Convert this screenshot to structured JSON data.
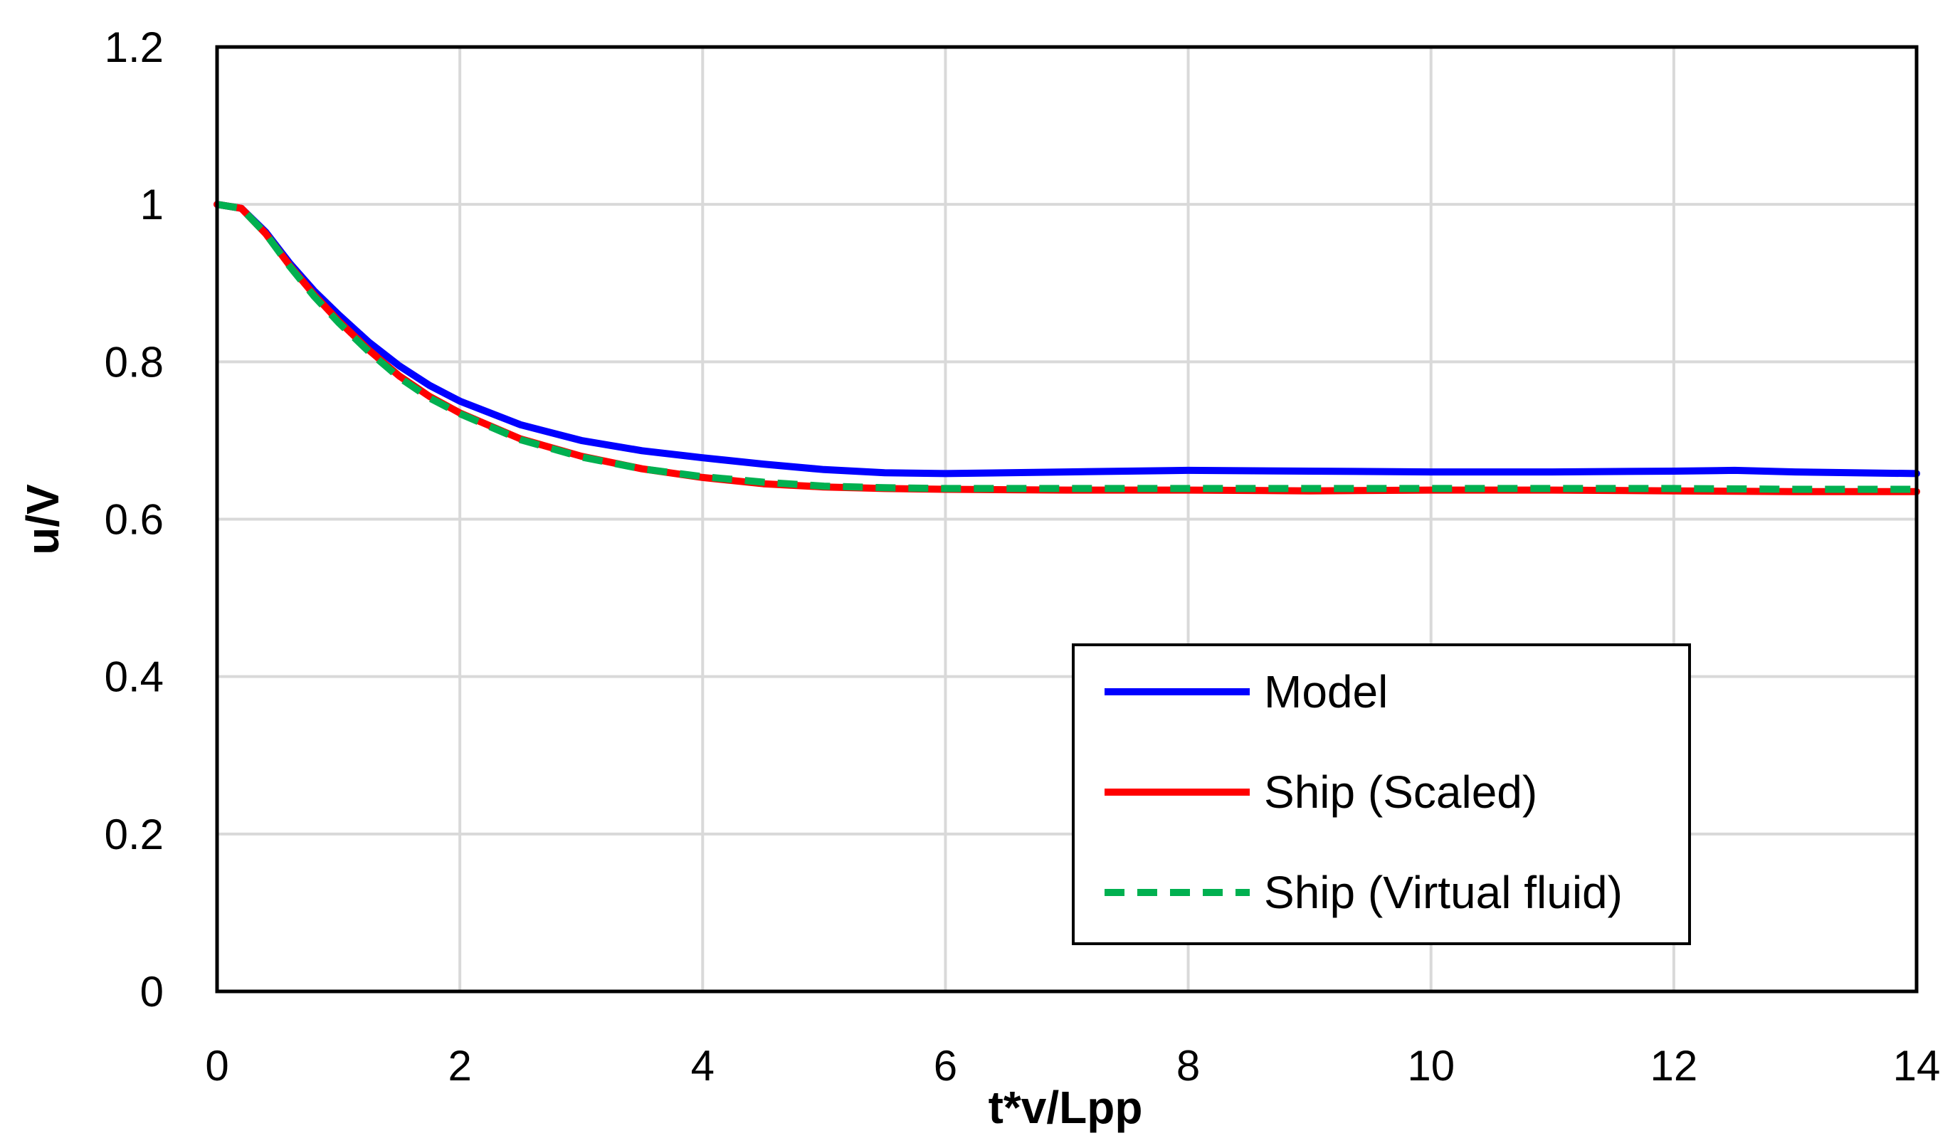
{
  "chart_data": {
    "type": "line",
    "title": "",
    "xlabel": "t*v/Lpp",
    "ylabel": "u/V",
    "xlim": [
      0,
      14
    ],
    "ylim": [
      0,
      1.2
    ],
    "xticks": [
      0,
      2,
      4,
      6,
      8,
      10,
      12,
      14
    ],
    "yticks": [
      0,
      0.2,
      0.4,
      0.6,
      0.8,
      1,
      1.2
    ],
    "xtick_labels": [
      "0",
      "2",
      "4",
      "6",
      "8",
      "10",
      "12",
      "14"
    ],
    "ytick_labels": [
      "0",
      "0.2",
      "0.4",
      "0.6",
      "0.8",
      "1",
      "1.2"
    ],
    "grid": true,
    "legend_position": "lower-right",
    "series": [
      {
        "name": "Model",
        "color": "#0000ff",
        "style": "solid",
        "x": [
          0,
          0.2,
          0.4,
          0.6,
          0.8,
          1.0,
          1.25,
          1.5,
          1.75,
          2.0,
          2.5,
          3.0,
          3.5,
          4.0,
          4.5,
          5.0,
          5.5,
          6.0,
          7.0,
          8.0,
          9.0,
          10.0,
          11.0,
          12.0,
          12.5,
          13.0,
          14.0
        ],
        "y": [
          1.0,
          0.995,
          0.965,
          0.925,
          0.89,
          0.86,
          0.825,
          0.795,
          0.77,
          0.75,
          0.72,
          0.7,
          0.687,
          0.678,
          0.67,
          0.663,
          0.659,
          0.658,
          0.66,
          0.662,
          0.661,
          0.66,
          0.66,
          0.661,
          0.662,
          0.66,
          0.658
        ]
      },
      {
        "name": "Ship (Scaled)",
        "color": "#ff0000",
        "style": "solid",
        "x": [
          0,
          0.2,
          0.4,
          0.6,
          0.8,
          1.0,
          1.25,
          1.5,
          1.75,
          2.0,
          2.5,
          3.0,
          3.5,
          4.0,
          4.5,
          5.0,
          5.5,
          6.0,
          7.0,
          8.0,
          9.0,
          10.0,
          11.0,
          12.0,
          13.0,
          14.0
        ],
        "y": [
          1.0,
          0.995,
          0.963,
          0.922,
          0.885,
          0.852,
          0.815,
          0.782,
          0.756,
          0.735,
          0.702,
          0.68,
          0.664,
          0.653,
          0.645,
          0.641,
          0.639,
          0.638,
          0.637,
          0.637,
          0.636,
          0.637,
          0.637,
          0.636,
          0.635,
          0.635
        ]
      },
      {
        "name": "Ship (Virtual fluid)",
        "color": "#00b050",
        "style": "dashed",
        "x": [
          0,
          0.2,
          0.4,
          0.6,
          0.8,
          1.0,
          1.25,
          1.5,
          1.75,
          2.0,
          2.5,
          3.0,
          3.5,
          4.0,
          4.5,
          5.0,
          5.5,
          6.0,
          7.0,
          8.0,
          9.0,
          10.0,
          11.0,
          12.0,
          13.0,
          14.0
        ],
        "y": [
          1.0,
          0.995,
          0.963,
          0.921,
          0.883,
          0.85,
          0.813,
          0.78,
          0.754,
          0.734,
          0.701,
          0.679,
          0.664,
          0.654,
          0.647,
          0.642,
          0.64,
          0.639,
          0.639,
          0.639,
          0.639,
          0.639,
          0.639,
          0.639,
          0.638,
          0.638
        ]
      }
    ]
  }
}
